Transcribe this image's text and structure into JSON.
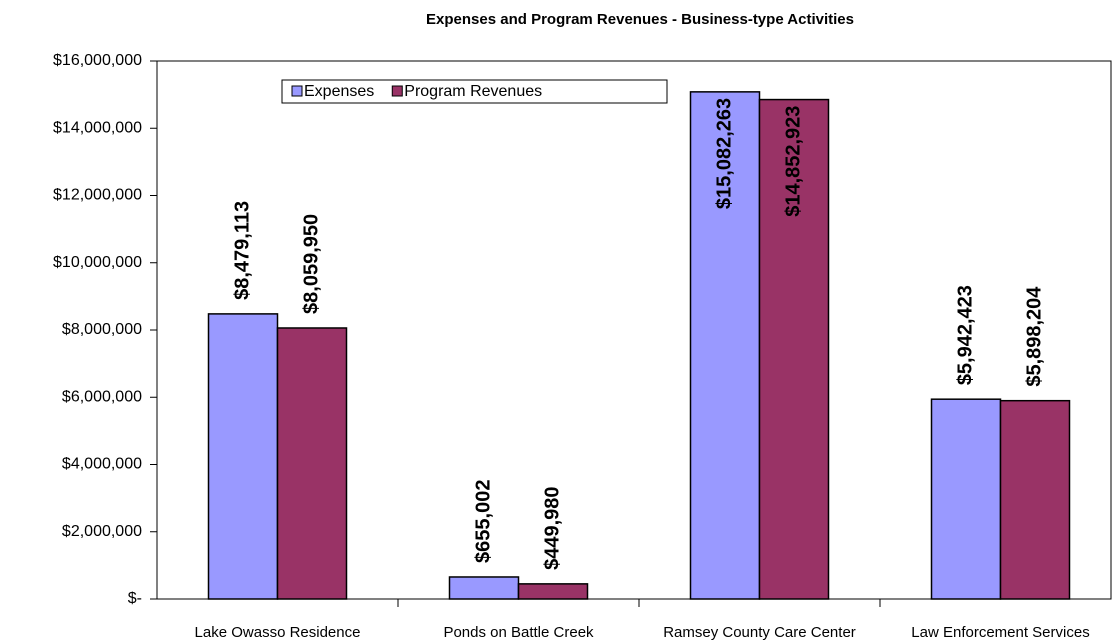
{
  "chart_data": {
    "type": "bar",
    "title": "Expenses and Program Revenues - Business-type Activities",
    "categories": [
      "Lake Owasso Residence",
      "Ponds on Battle Creek",
      "Ramsey County Care Center",
      "Law Enforcement Services"
    ],
    "series": [
      {
        "name": "Expenses",
        "color": "#9999ff",
        "values": [
          8479113,
          655002,
          15082263,
          5942423
        ],
        "value_labels": [
          "$8,479,113",
          "$655,002",
          "$15,082,263",
          "$5,942,423"
        ]
      },
      {
        "name": "Program Revenues",
        "color": "#993366",
        "values": [
          8059950,
          449980,
          14852923,
          5898204
        ],
        "value_labels": [
          "$8,059,950",
          "$449,980",
          "$14,852,923",
          "$5,898,204"
        ]
      }
    ],
    "ylim": [
      0,
      16000000
    ],
    "yticks": [
      {
        "value": 0,
        "label": "$-"
      },
      {
        "value": 2000000,
        "label": "$2,000,000"
      },
      {
        "value": 4000000,
        "label": "$4,000,000"
      },
      {
        "value": 6000000,
        "label": "$6,000,000"
      },
      {
        "value": 8000000,
        "label": "$8,000,000"
      },
      {
        "value": 10000000,
        "label": "$10,000,000"
      },
      {
        "value": 12000000,
        "label": "$12,000,000"
      },
      {
        "value": 14000000,
        "label": "$14,000,000"
      },
      {
        "value": 16000000,
        "label": "$16,000,000"
      }
    ],
    "legend": "top-left"
  }
}
